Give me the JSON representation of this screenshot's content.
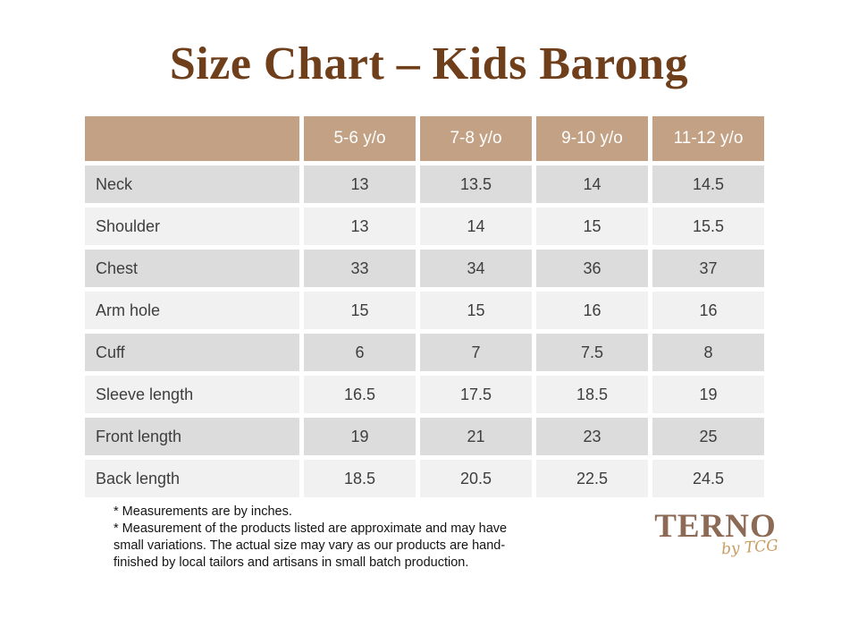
{
  "title": "Size Chart – Kids Barong",
  "table": {
    "columns": [
      "5-6 y/o",
      "7-8 y/o",
      "9-10 y/o",
      "11-12 y/o"
    ],
    "rows": [
      {
        "label": "Neck",
        "values": [
          "13",
          "13.5",
          "14",
          "14.5"
        ]
      },
      {
        "label": "Shoulder",
        "values": [
          "13",
          "14",
          "15",
          "15.5"
        ]
      },
      {
        "label": "Chest",
        "values": [
          "33",
          "34",
          "36",
          "37"
        ]
      },
      {
        "label": "Arm hole",
        "values": [
          "15",
          "15",
          "16",
          "16"
        ]
      },
      {
        "label": "Cuff",
        "values": [
          "6",
          "7",
          "7.5",
          "8"
        ]
      },
      {
        "label": "Sleeve length",
        "values": [
          "16.5",
          "17.5",
          "18.5",
          "19"
        ]
      },
      {
        "label": "Front length",
        "values": [
          "19",
          "21",
          "23",
          "25"
        ]
      },
      {
        "label": "Back length",
        "values": [
          "18.5",
          "20.5",
          "22.5",
          "24.5"
        ]
      }
    ]
  },
  "footnotes": {
    "line1": "* Measurements are by inches.",
    "line2": "* Measurement of the products listed are approximate and may have small variations. The actual size may vary as our products are hand-finished by local tailors and artisans in small batch production."
  },
  "logo": {
    "brand": "TERNO",
    "tagline": "by TCG"
  },
  "colors": {
    "title_brown": "#6F3E1B",
    "header_tan": "#C2A184",
    "row_dark": "#DCDCDC",
    "row_light": "#F1F1F1",
    "logo_brown": "#8C6A55",
    "tagline_gold": "#C89D62"
  }
}
